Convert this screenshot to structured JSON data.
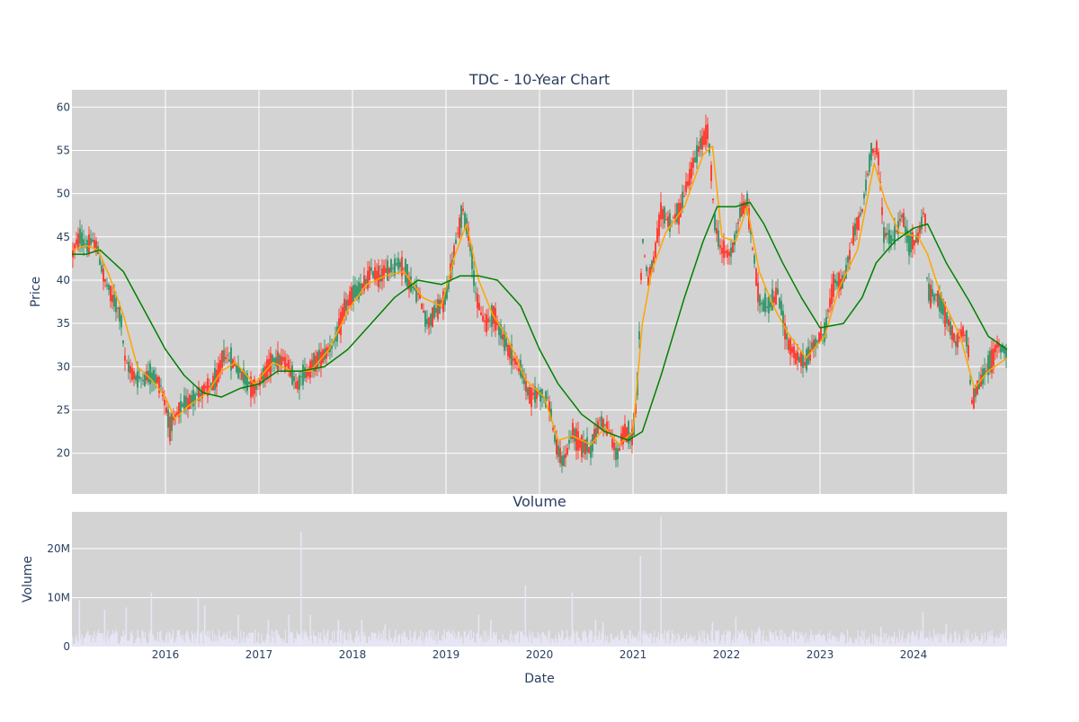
{
  "colors": {
    "panel_bg": "#d3d3d3",
    "grid": "#ffffff",
    "text": "#2a3f5f",
    "up": "#3d9970",
    "down": "#ff4136",
    "ma_short": "#ffa500",
    "ma_long": "#008000",
    "volume": "#e6e6f5"
  },
  "chart_data": [
    {
      "type": "candlestick",
      "title": "TDC - 10-Year Chart",
      "xlabel": "",
      "ylabel": "Price",
      "xlim": [
        2015.0,
        2025.0
      ],
      "ylim": [
        15.3,
        62.0
      ],
      "y_ticks": [
        20,
        25,
        30,
        35,
        40,
        45,
        50,
        55,
        60
      ],
      "x_ticks": [
        2016,
        2017,
        2018,
        2019,
        2020,
        2021,
        2022,
        2023,
        2024
      ],
      "grid": true,
      "close_path_approx": [
        [
          2015.0,
          43.0
        ],
        [
          2015.08,
          45.0
        ],
        [
          2015.15,
          44.0
        ],
        [
          2015.25,
          44.5
        ],
        [
          2015.35,
          40.0
        ],
        [
          2015.45,
          37.5
        ],
        [
          2015.52,
          36.0
        ],
        [
          2015.57,
          30.5
        ],
        [
          2015.7,
          28.5
        ],
        [
          2015.85,
          29.0
        ],
        [
          2015.95,
          28.0
        ],
        [
          2016.05,
          23.0
        ],
        [
          2016.15,
          25.0
        ],
        [
          2016.3,
          26.5
        ],
        [
          2016.45,
          27.5
        ],
        [
          2016.55,
          28.5
        ],
        [
          2016.62,
          31.5
        ],
        [
          2016.72,
          30.5
        ],
        [
          2016.82,
          29.0
        ],
        [
          2016.95,
          27.5
        ],
        [
          2017.05,
          29.0
        ],
        [
          2017.15,
          31.0
        ],
        [
          2017.3,
          30.5
        ],
        [
          2017.4,
          28.0
        ],
        [
          2017.52,
          29.5
        ],
        [
          2017.6,
          30.5
        ],
        [
          2017.7,
          31.5
        ],
        [
          2017.82,
          33.0
        ],
        [
          2017.92,
          37.0
        ],
        [
          2018.02,
          38.5
        ],
        [
          2018.1,
          39.0
        ],
        [
          2018.2,
          41.0
        ],
        [
          2018.3,
          40.5
        ],
        [
          2018.42,
          41.5
        ],
        [
          2018.52,
          42.0
        ],
        [
          2018.62,
          39.5
        ],
        [
          2018.72,
          38.0
        ],
        [
          2018.8,
          35.0
        ],
        [
          2018.9,
          36.5
        ],
        [
          2019.0,
          38.0
        ],
        [
          2019.1,
          44.0
        ],
        [
          2019.18,
          48.0
        ],
        [
          2019.25,
          45.0
        ],
        [
          2019.33,
          37.5
        ],
        [
          2019.42,
          35.0
        ],
        [
          2019.52,
          36.0
        ],
        [
          2019.62,
          33.0
        ],
        [
          2019.72,
          31.0
        ],
        [
          2019.8,
          29.5
        ],
        [
          2019.9,
          26.5
        ],
        [
          2020.0,
          27.0
        ],
        [
          2020.1,
          26.0
        ],
        [
          2020.18,
          20.5
        ],
        [
          2020.26,
          19.0
        ],
        [
          2020.35,
          22.5
        ],
        [
          2020.45,
          21.0
        ],
        [
          2020.55,
          20.5
        ],
        [
          2020.65,
          24.0
        ],
        [
          2020.75,
          22.5
        ],
        [
          2020.83,
          19.5
        ],
        [
          2020.9,
          22.5
        ],
        [
          2021.0,
          22.0
        ],
        [
          2021.05,
          28.0
        ],
        [
          2021.1,
          45.0
        ],
        [
          2021.16,
          40.0
        ],
        [
          2021.22,
          42.0
        ],
        [
          2021.3,
          48.0
        ],
        [
          2021.4,
          46.5
        ],
        [
          2021.5,
          48.0
        ],
        [
          2021.6,
          52.0
        ],
        [
          2021.7,
          55.0
        ],
        [
          2021.8,
          57.5
        ],
        [
          2021.88,
          46.0
        ],
        [
          2021.95,
          43.5
        ],
        [
          2022.05,
          43.0
        ],
        [
          2022.15,
          48.0
        ],
        [
          2022.22,
          49.0
        ],
        [
          2022.3,
          42.0
        ],
        [
          2022.35,
          37.5
        ],
        [
          2022.45,
          37.0
        ],
        [
          2022.55,
          38.5
        ],
        [
          2022.65,
          33.0
        ],
        [
          2022.75,
          31.0
        ],
        [
          2022.85,
          30.5
        ],
        [
          2022.95,
          33.0
        ],
        [
          2023.05,
          34.0
        ],
        [
          2023.15,
          40.0
        ],
        [
          2023.25,
          39.5
        ],
        [
          2023.35,
          45.0
        ],
        [
          2023.45,
          48.0
        ],
        [
          2023.55,
          55.0
        ],
        [
          2023.62,
          55.0
        ],
        [
          2023.68,
          45.5
        ],
        [
          2023.78,
          44.5
        ],
        [
          2023.88,
          47.5
        ],
        [
          2023.95,
          44.0
        ],
        [
          2024.05,
          45.0
        ],
        [
          2024.12,
          48.5
        ],
        [
          2024.15,
          38.5
        ],
        [
          2024.25,
          38.0
        ],
        [
          2024.35,
          36.0
        ],
        [
          2024.45,
          32.5
        ],
        [
          2024.52,
          34.0
        ],
        [
          2024.58,
          33.0
        ],
        [
          2024.62,
          26.0
        ],
        [
          2024.7,
          28.0
        ],
        [
          2024.8,
          30.0
        ],
        [
          2024.9,
          32.5
        ],
        [
          2025.0,
          31.5
        ]
      ],
      "series": [
        {
          "legend_text": "",
          "role": "short moving average",
          "color": "#ffa500",
          "points": [
            [
              2015.0,
              43.5
            ],
            [
              2015.15,
              44.0
            ],
            [
              2015.28,
              43.5
            ],
            [
              2015.4,
              40.5
            ],
            [
              2015.55,
              36.0
            ],
            [
              2015.7,
              30.0
            ],
            [
              2015.85,
              28.5
            ],
            [
              2016.0,
              26.5
            ],
            [
              2016.1,
              24.0
            ],
            [
              2016.25,
              25.5
            ],
            [
              2016.45,
              27.0
            ],
            [
              2016.6,
              29.5
            ],
            [
              2016.75,
              30.5
            ],
            [
              2016.95,
              28.0
            ],
            [
              2017.15,
              30.5
            ],
            [
              2017.35,
              29.5
            ],
            [
              2017.55,
              29.5
            ],
            [
              2017.75,
              32.0
            ],
            [
              2017.95,
              36.5
            ],
            [
              2018.15,
              39.5
            ],
            [
              2018.35,
              40.5
            ],
            [
              2018.55,
              41.0
            ],
            [
              2018.75,
              38.0
            ],
            [
              2018.95,
              37.0
            ],
            [
              2019.1,
              43.0
            ],
            [
              2019.22,
              46.5
            ],
            [
              2019.35,
              40.0
            ],
            [
              2019.5,
              36.0
            ],
            [
              2019.65,
              33.5
            ],
            [
              2019.85,
              28.5
            ],
            [
              2020.05,
              26.5
            ],
            [
              2020.2,
              21.5
            ],
            [
              2020.35,
              22.0
            ],
            [
              2020.55,
              21.0
            ],
            [
              2020.7,
              23.0
            ],
            [
              2020.85,
              21.0
            ],
            [
              2021.0,
              22.5
            ],
            [
              2021.1,
              35.0
            ],
            [
              2021.2,
              41.0
            ],
            [
              2021.35,
              45.5
            ],
            [
              2021.55,
              48.5
            ],
            [
              2021.75,
              54.5
            ],
            [
              2021.85,
              55.5
            ],
            [
              2021.95,
              45.0
            ],
            [
              2022.1,
              44.5
            ],
            [
              2022.22,
              48.5
            ],
            [
              2022.35,
              41.0
            ],
            [
              2022.5,
              37.0
            ],
            [
              2022.65,
              34.0
            ],
            [
              2022.85,
              31.0
            ],
            [
              2023.05,
              33.5
            ],
            [
              2023.2,
              39.0
            ],
            [
              2023.4,
              43.5
            ],
            [
              2023.58,
              53.5
            ],
            [
              2023.7,
              49.0
            ],
            [
              2023.85,
              45.5
            ],
            [
              2024.05,
              45.0
            ],
            [
              2024.15,
              43.0
            ],
            [
              2024.3,
              38.0
            ],
            [
              2024.5,
              33.5
            ],
            [
              2024.65,
              27.5
            ],
            [
              2024.8,
              29.5
            ],
            [
              2025.0,
              31.0
            ]
          ]
        },
        {
          "legend_text": "",
          "role": "long moving average",
          "color": "#008000",
          "points": [
            [
              2015.0,
              43.0
            ],
            [
              2015.15,
              43.0
            ],
            [
              2015.3,
              43.5
            ],
            [
              2015.55,
              41.0
            ],
            [
              2015.8,
              36.0
            ],
            [
              2016.0,
              32.0
            ],
            [
              2016.2,
              29.0
            ],
            [
              2016.4,
              27.0
            ],
            [
              2016.6,
              26.5
            ],
            [
              2016.8,
              27.5
            ],
            [
              2017.0,
              28.0
            ],
            [
              2017.2,
              29.5
            ],
            [
              2017.45,
              29.5
            ],
            [
              2017.7,
              30.0
            ],
            [
              2017.95,
              32.0
            ],
            [
              2018.2,
              35.0
            ],
            [
              2018.45,
              38.0
            ],
            [
              2018.7,
              40.0
            ],
            [
              2018.95,
              39.5
            ],
            [
              2019.15,
              40.5
            ],
            [
              2019.35,
              40.5
            ],
            [
              2019.55,
              40.0
            ],
            [
              2019.8,
              37.0
            ],
            [
              2020.0,
              32.0
            ],
            [
              2020.2,
              28.0
            ],
            [
              2020.45,
              24.5
            ],
            [
              2020.7,
              22.5
            ],
            [
              2020.95,
              21.5
            ],
            [
              2021.1,
              22.5
            ],
            [
              2021.3,
              29.0
            ],
            [
              2021.55,
              38.0
            ],
            [
              2021.75,
              44.5
            ],
            [
              2021.9,
              48.5
            ],
            [
              2022.1,
              48.5
            ],
            [
              2022.25,
              49.0
            ],
            [
              2022.4,
              46.5
            ],
            [
              2022.6,
              42.0
            ],
            [
              2022.8,
              38.0
            ],
            [
              2023.0,
              34.5
            ],
            [
              2023.25,
              35.0
            ],
            [
              2023.45,
              38.0
            ],
            [
              2023.6,
              42.0
            ],
            [
              2023.8,
              44.5
            ],
            [
              2024.0,
              46.0
            ],
            [
              2024.15,
              46.5
            ],
            [
              2024.35,
              42.0
            ],
            [
              2024.6,
              37.5
            ],
            [
              2024.8,
              33.5
            ],
            [
              2025.0,
              32.0
            ]
          ]
        }
      ]
    },
    {
      "type": "bar",
      "title": "Volume",
      "xlabel": "Date",
      "ylabel": "Volume",
      "xlim": [
        2015.0,
        2025.0
      ],
      "ylim": [
        0,
        27500000
      ],
      "y_ticks": [
        0,
        10000000,
        20000000
      ],
      "y_tick_labels": [
        "0",
        "10M",
        "20M"
      ],
      "x_ticks": [
        2016,
        2017,
        2018,
        2019,
        2020,
        2021,
        2022,
        2023,
        2024
      ],
      "grid": true,
      "spikes": [
        [
          2015.08,
          9500000
        ],
        [
          2015.35,
          7500000
        ],
        [
          2015.58,
          8000000
        ],
        [
          2015.85,
          11000000
        ],
        [
          2016.35,
          10000000
        ],
        [
          2016.42,
          8500000
        ],
        [
          2016.78,
          6500000
        ],
        [
          2017.1,
          5500000
        ],
        [
          2017.32,
          6500000
        ],
        [
          2017.45,
          23500000
        ],
        [
          2017.55,
          6500000
        ],
        [
          2017.85,
          5500000
        ],
        [
          2018.1,
          5500000
        ],
        [
          2018.35,
          4500000
        ],
        [
          2019.35,
          6500000
        ],
        [
          2019.48,
          5500000
        ],
        [
          2019.85,
          12500000
        ],
        [
          2020.35,
          11000000
        ],
        [
          2020.6,
          5500000
        ],
        [
          2020.68,
          5000000
        ],
        [
          2021.08,
          18500000
        ],
        [
          2021.3,
          26500000
        ],
        [
          2021.85,
          5000000
        ],
        [
          2022.1,
          6000000
        ],
        [
          2022.35,
          4000000
        ],
        [
          2023.65,
          4000000
        ],
        [
          2024.1,
          7000000
        ],
        [
          2024.35,
          4500000
        ]
      ],
      "baseline_range": [
        500000,
        3500000
      ]
    }
  ]
}
